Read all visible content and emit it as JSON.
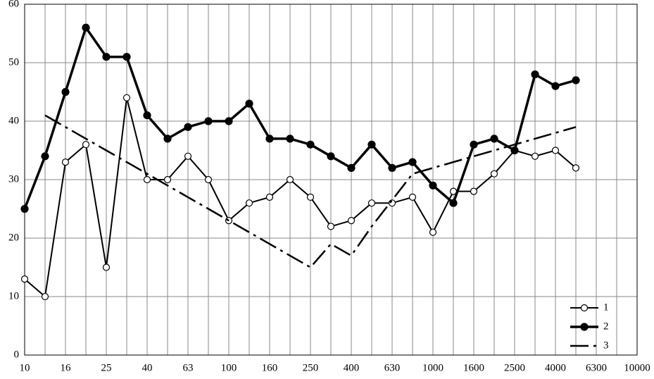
{
  "chart_data": {
    "type": "line",
    "categories": [
      "10",
      null,
      "16",
      null,
      "25",
      null,
      "40",
      null,
      "63",
      null,
      "100",
      null,
      "160",
      null,
      "250",
      null,
      "400",
      null,
      "630",
      null,
      "1000",
      null,
      "1600",
      null,
      "2500",
      null,
      "4000",
      null,
      "6300",
      null,
      "10000"
    ],
    "series": [
      {
        "name": "1",
        "color": "#000000",
        "marker": "open-circle",
        "line_style": "solid",
        "line_width": 2,
        "values": [
          13,
          10,
          33,
          36,
          15,
          44,
          30,
          30,
          34,
          30,
          23,
          26,
          27,
          30,
          27,
          22,
          23,
          26,
          26,
          27,
          21,
          28,
          28,
          31,
          35,
          34,
          35,
          32,
          null,
          null,
          null
        ]
      },
      {
        "name": "2",
        "color": "#000000",
        "marker": "filled-circle",
        "line_style": "solid",
        "line_width": 3.5,
        "values": [
          25,
          34,
          45,
          56,
          51,
          51,
          41,
          37,
          39,
          40,
          40,
          43,
          37,
          37,
          36,
          34,
          32,
          36,
          32,
          33,
          29,
          26,
          36,
          37,
          35,
          48,
          46,
          47,
          null,
          null,
          null
        ]
      },
      {
        "name": "3",
        "color": "#000000",
        "marker": "none",
        "line_style": "dashdot",
        "line_width": 2.5,
        "values": [
          null,
          41,
          39,
          37,
          35,
          33,
          31,
          29,
          27,
          25,
          23,
          21,
          19,
          17,
          15,
          19,
          17,
          22,
          26.5,
          31,
          32,
          33,
          34,
          35,
          36,
          37,
          38,
          39,
          null,
          null,
          null
        ]
      }
    ],
    "ylim": [
      0,
      60
    ],
    "yticks": [
      0,
      10,
      20,
      30,
      40,
      50,
      60
    ],
    "grid": true,
    "legend": "lower right"
  }
}
